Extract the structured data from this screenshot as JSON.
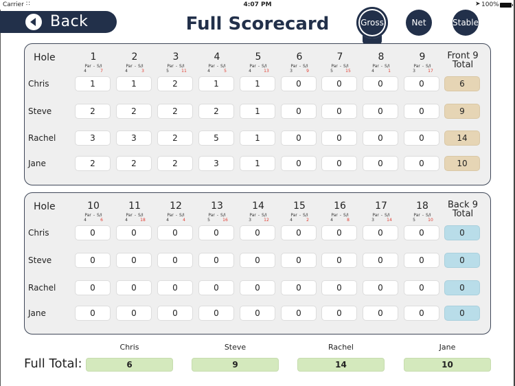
{
  "status_bar": {
    "carrier": "Carrier",
    "time": "4:07 PM",
    "battery": "100%"
  },
  "header": {
    "back_label": "Back",
    "title": "Full Scorecard",
    "modes": [
      {
        "label": "Gross",
        "active": true
      },
      {
        "label": "Net",
        "active": false
      },
      {
        "label": "Stable",
        "active": false
      }
    ]
  },
  "labels": {
    "hole": "Hole",
    "par": "Par",
    "dash": "-",
    "si": "S/I",
    "front_total_1": "Front 9",
    "front_total_2": "Total",
    "back_total_1": "Back 9",
    "back_total_2": "Total",
    "full_total": "Full Total:"
  },
  "front_nine": {
    "holes": [
      {
        "num": "1",
        "par": "4",
        "si": "7"
      },
      {
        "num": "2",
        "par": "4",
        "si": "3"
      },
      {
        "num": "3",
        "par": "5",
        "si": "11"
      },
      {
        "num": "4",
        "par": "4",
        "si": "5"
      },
      {
        "num": "5",
        "par": "4",
        "si": "13"
      },
      {
        "num": "6",
        "par": "3",
        "si": "9"
      },
      {
        "num": "7",
        "par": "5",
        "si": "15"
      },
      {
        "num": "8",
        "par": "4",
        "si": "1"
      },
      {
        "num": "9",
        "par": "3",
        "si": "17"
      }
    ],
    "players": [
      {
        "name": "Chris",
        "scores": [
          "1",
          "1",
          "2",
          "1",
          "1",
          "0",
          "0",
          "0",
          "0"
        ],
        "total": "6"
      },
      {
        "name": "Steve",
        "scores": [
          "2",
          "2",
          "2",
          "2",
          "1",
          "0",
          "0",
          "0",
          "0"
        ],
        "total": "9"
      },
      {
        "name": "Rachel",
        "scores": [
          "3",
          "3",
          "2",
          "5",
          "1",
          "0",
          "0",
          "0",
          "0"
        ],
        "total": "14"
      },
      {
        "name": "Jane",
        "scores": [
          "2",
          "2",
          "2",
          "3",
          "1",
          "0",
          "0",
          "0",
          "0"
        ],
        "total": "10"
      }
    ]
  },
  "back_nine": {
    "holes": [
      {
        "num": "10",
        "par": "4",
        "si": "6"
      },
      {
        "num": "11",
        "par": "4",
        "si": "18"
      },
      {
        "num": "12",
        "par": "4",
        "si": "4"
      },
      {
        "num": "13",
        "par": "5",
        "si": "16"
      },
      {
        "num": "14",
        "par": "3",
        "si": "12"
      },
      {
        "num": "15",
        "par": "4",
        "si": "2"
      },
      {
        "num": "16",
        "par": "4",
        "si": "8"
      },
      {
        "num": "17",
        "par": "3",
        "si": "14"
      },
      {
        "num": "18",
        "par": "5",
        "si": "10"
      }
    ],
    "players": [
      {
        "name": "Chris",
        "scores": [
          "0",
          "0",
          "0",
          "0",
          "0",
          "0",
          "0",
          "0",
          "0"
        ],
        "total": "0"
      },
      {
        "name": "Steve",
        "scores": [
          "0",
          "0",
          "0",
          "0",
          "0",
          "0",
          "0",
          "0",
          "0"
        ],
        "total": "0"
      },
      {
        "name": "Rachel",
        "scores": [
          "0",
          "0",
          "0",
          "0",
          "0",
          "0",
          "0",
          "0",
          "0"
        ],
        "total": "0"
      },
      {
        "name": "Jane",
        "scores": [
          "0",
          "0",
          "0",
          "0",
          "0",
          "0",
          "0",
          "0",
          "0"
        ],
        "total": "0"
      }
    ]
  },
  "full_totals": [
    {
      "name": "Chris",
      "total": "6"
    },
    {
      "name": "Steve",
      "total": "9"
    },
    {
      "name": "Rachel",
      "total": "14"
    },
    {
      "name": "Jane",
      "total": "10"
    }
  ],
  "colors": {
    "navy": "#22304a",
    "front_total_bg": "#e6d5b5",
    "back_total_bg": "#b9dde9",
    "full_total_bg": "#d4e9bd",
    "stroke_index_red": "#e03a2f"
  }
}
